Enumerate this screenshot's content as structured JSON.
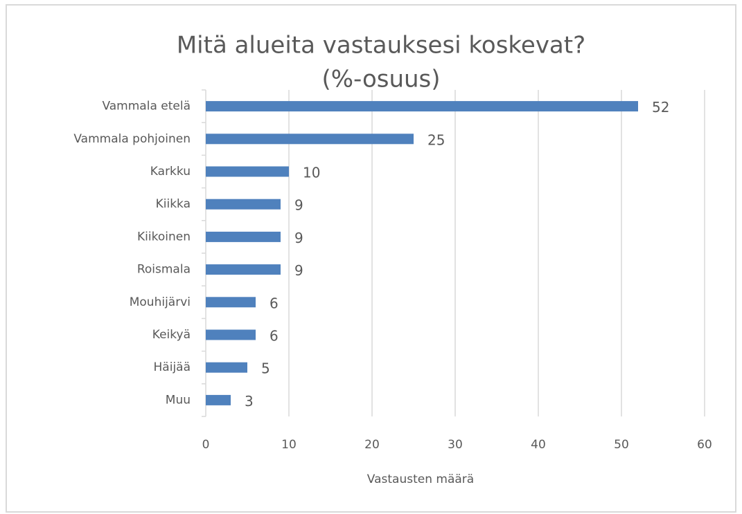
{
  "chart_data": {
    "type": "hbar",
    "title": "Mitä alueita vastauksesi koskevat?",
    "subtitle": "(%-osuus)",
    "x_label": "Vastausten määrä",
    "categories": [
      "Vammala etelä",
      "Vammala pohjoinen",
      "Karkku",
      "Kiikka",
      "Kiikoinen",
      "Roismala",
      "Mouhijärvi",
      "Keikyä",
      "Häijää",
      "Muu"
    ],
    "values": [
      52,
      25,
      10,
      9,
      9,
      9,
      6,
      6,
      5,
      3
    ],
    "color": "#4f81bd",
    "xlim": [
      0,
      60
    ],
    "xticks": [
      0,
      10,
      20,
      30,
      40,
      50,
      60
    ],
    "grid": true
  }
}
